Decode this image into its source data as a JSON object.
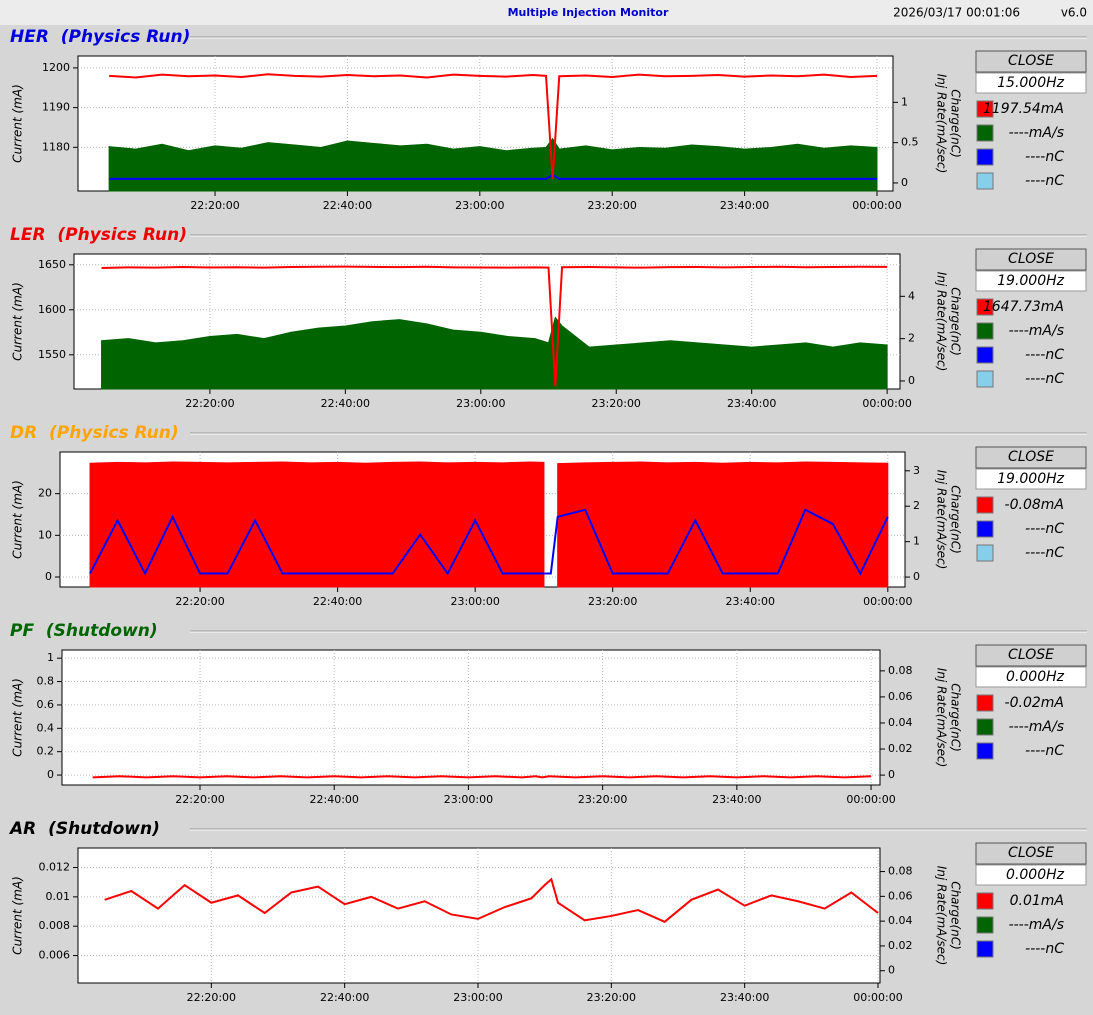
{
  "header": {
    "title": "Multiple Injection Monitor",
    "timestamp": "2026/03/17 00:01:06",
    "version": "v6.0"
  },
  "chart_data": [
    {
      "type": "line",
      "title": "HER  (Physics Run)",
      "title_color": "#0000dd",
      "ylabel": "Current (mA)",
      "y2label": [
        "Charge(nC)",
        "Inj Rate(mA/sec)"
      ],
      "grid": true,
      "x": [
        "22:04:00",
        "22:08:00",
        "22:12:00",
        "22:16:00",
        "22:20:00",
        "22:24:00",
        "22:28:00",
        "22:32:00",
        "22:36:00",
        "22:40:00",
        "22:44:00",
        "22:48:00",
        "22:52:00",
        "22:56:00",
        "23:00:00",
        "23:04:00",
        "23:08:00",
        "23:10:00",
        "23:11:00",
        "23:12:00",
        "23:16:00",
        "23:20:00",
        "23:24:00",
        "23:28:00",
        "23:32:00",
        "23:36:00",
        "23:40:00",
        "23:44:00",
        "23:48:00",
        "23:52:00",
        "23:56:00",
        "00:00:00"
      ],
      "xlim": [
        "21:59:18",
        "00:02:25"
      ],
      "xticks": [
        "22:20:00",
        "22:40:00",
        "23:00:00",
        "23:20:00",
        "23:40:00",
        "00:00:00"
      ],
      "ylim": [
        1169,
        1203
      ],
      "yticks": [
        1180,
        1190,
        1200
      ],
      "y2lim": [
        -0.1,
        1.575
      ],
      "y2ticks": [
        0,
        0.5,
        1
      ],
      "series": [
        {
          "color": "#006400",
          "style": "area",
          "axis": "y2",
          "values": [
            0.45,
            0.42,
            0.48,
            0.4,
            0.46,
            0.43,
            0.5,
            0.47,
            0.44,
            0.52,
            0.49,
            0.46,
            0.48,
            0.42,
            0.45,
            0.4,
            0.43,
            0.44,
            0.55,
            0.42,
            0.46,
            0.41,
            0.44,
            0.43,
            0.47,
            0.45,
            0.42,
            0.44,
            0.48,
            0.43,
            0.46,
            0.44
          ]
        },
        {
          "color": "#0000ff",
          "style": "line",
          "axis": "y2",
          "values": [
            0.05,
            0.05,
            0.05,
            0.05,
            0.05,
            0.05,
            0.05,
            0.05,
            0.05,
            0.05,
            0.05,
            0.05,
            0.05,
            0.05,
            0.05,
            0.05,
            0.05,
            0.05,
            0.1,
            0.05,
            0.05,
            0.05,
            0.05,
            0.05,
            0.05,
            0.05,
            0.05,
            0.05,
            0.05,
            0.05,
            0.05,
            0.05
          ]
        },
        {
          "color": "#ff0000",
          "style": "line",
          "values": [
            1198,
            1197.6,
            1198.3,
            1197.9,
            1198.1,
            1197.7,
            1198.4,
            1198,
            1197.8,
            1198.2,
            1197.9,
            1198.1,
            1197.6,
            1198.3,
            1198,
            1197.8,
            1198.2,
            1198,
            1172,
            1197.9,
            1198.1,
            1197.7,
            1198.3,
            1197.9,
            1198,
            1198.2,
            1197.8,
            1198.1,
            1197.9,
            1198.3,
            1197.7,
            1198
          ]
        }
      ],
      "button": "CLOSE",
      "rate": "15.000Hz",
      "readouts": [
        {
          "label": "1197.54mA",
          "color": "#ff0000"
        },
        {
          "label": "----mA/s",
          "color": "#006400"
        },
        {
          "label": "----nC",
          "color": "#0000ff"
        },
        {
          "label": "----nC",
          "color": "#87ceeb"
        }
      ]
    },
    {
      "type": "line",
      "title": "LER  (Physics Run)",
      "title_color": "#ee0000",
      "ylabel": "Current (mA)",
      "y2label": [
        "Charge(nC)",
        "Inj Rate(mA/sec)"
      ],
      "grid": true,
      "x": [
        "22:04:00",
        "22:08:00",
        "22:12:00",
        "22:16:00",
        "22:20:00",
        "22:24:00",
        "22:28:00",
        "22:32:00",
        "22:36:00",
        "22:40:00",
        "22:44:00",
        "22:48:00",
        "22:52:00",
        "22:56:00",
        "23:00:00",
        "23:04:00",
        "23:08:00",
        "23:10:00",
        "23:11:00",
        "23:12:00",
        "23:16:00",
        "23:20:00",
        "23:24:00",
        "23:28:00",
        "23:32:00",
        "23:36:00",
        "23:40:00",
        "23:44:00",
        "23:48:00",
        "23:52:00",
        "23:56:00",
        "00:00:00"
      ],
      "xlim": [
        "21:59:56",
        "00:01:54"
      ],
      "xticks": [
        "22:20:00",
        "22:40:00",
        "23:00:00",
        "23:20:00",
        "23:40:00",
        "00:00:00"
      ],
      "ylim": [
        1512,
        1662
      ],
      "yticks": [
        1550,
        1600,
        1650
      ],
      "y2lim": [
        -0.38,
        6
      ],
      "y2ticks": [
        0,
        2,
        4
      ],
      "series": [
        {
          "color": "#006400",
          "style": "area",
          "axis": "y2",
          "values": [
            1.9,
            2.0,
            1.8,
            1.9,
            2.1,
            2.2,
            2.0,
            2.3,
            2.5,
            2.6,
            2.8,
            2.9,
            2.7,
            2.4,
            2.3,
            2.1,
            2.0,
            1.8,
            3.0,
            2.6,
            1.6,
            1.7,
            1.8,
            1.9,
            1.8,
            1.7,
            1.6,
            1.7,
            1.8,
            1.6,
            1.8,
            1.7
          ]
        },
        {
          "color": "#ff0000",
          "style": "line",
          "values": [
            1646.5,
            1647.2,
            1646.8,
            1647.5,
            1647,
            1647.3,
            1646.9,
            1647.6,
            1647.8,
            1648,
            1647.7,
            1647.4,
            1647.9,
            1647.2,
            1647,
            1646.8,
            1647.1,
            1646.9,
            1515,
            1647.3,
            1647.5,
            1647.1,
            1646.8,
            1647.4,
            1647.6,
            1647.2,
            1647.5,
            1647.8,
            1647.3,
            1647.6,
            1647.9,
            1647.7
          ]
        }
      ],
      "button": "CLOSE",
      "rate": "19.000Hz",
      "readouts": [
        {
          "label": "1647.73mA",
          "color": "#ff0000"
        },
        {
          "label": "----mA/s",
          "color": "#006400"
        },
        {
          "label": "----nC",
          "color": "#0000ff"
        },
        {
          "label": "----nC",
          "color": "#87ceeb"
        }
      ]
    },
    {
      "type": "line",
      "title": "DR  (Physics Run)",
      "title_color": "#ffa500",
      "ylabel": "Current (mA)",
      "y2label": [
        "Charge(nC)",
        "Inj Rate(mA/sec)"
      ],
      "grid": true,
      "x": [
        "22:04:00",
        "22:08:00",
        "22:12:00",
        "22:16:00",
        "22:20:00",
        "22:24:00",
        "22:28:00",
        "22:32:00",
        "22:36:00",
        "22:40:00",
        "22:44:00",
        "22:48:00",
        "22:52:00",
        "22:56:00",
        "23:00:00",
        "23:04:00",
        "23:08:00",
        "23:10:00",
        "23:11:00",
        "23:12:00",
        "23:16:00",
        "23:20:00",
        "23:24:00",
        "23:28:00",
        "23:32:00",
        "23:36:00",
        "23:40:00",
        "23:44:00",
        "23:48:00",
        "23:52:00",
        "23:56:00",
        "00:00:00"
      ],
      "xlim": [
        "21:59:38",
        "00:02:30"
      ],
      "xticks": [
        "22:20:00",
        "22:40:00",
        "23:00:00",
        "23:20:00",
        "23:40:00",
        "00:00:00"
      ],
      "ylim": [
        -2.4,
        30
      ],
      "yticks": [
        0,
        10,
        20
      ],
      "y2lim": [
        -0.28,
        3.53
      ],
      "y2ticks": [
        0,
        1,
        2,
        3
      ],
      "series": [
        {
          "color": "#ff0000",
          "style": "area",
          "values": [
            27.3,
            27.5,
            27.4,
            27.6,
            27.5,
            27.4,
            27.5,
            27.6,
            27.4,
            27.5,
            27.3,
            27.5,
            27.6,
            27.4,
            27.5,
            27.4,
            27.6,
            27.5,
            null,
            27.2,
            27.4,
            27.5,
            27.6,
            27.4,
            27.5,
            27.3,
            27.5,
            27.4,
            27.6,
            27.5,
            27.4,
            27.3
          ]
        },
        {
          "color": "#0000ff",
          "style": "line",
          "axis": "y2",
          "values": [
            0.1,
            1.6,
            0.1,
            1.7,
            0.1,
            0.1,
            1.6,
            0.1,
            0.1,
            0.1,
            0.1,
            0.1,
            1.2,
            0.1,
            1.6,
            0.1,
            0.1,
            0.1,
            0.1,
            1.7,
            1.9,
            0.1,
            0.1,
            0.1,
            1.6,
            0.1,
            0.1,
            0.1,
            1.9,
            1.5,
            0.1,
            1.7
          ]
        }
      ],
      "button": "CLOSE",
      "rate": "19.000Hz",
      "readouts": [
        {
          "label": "-0.08mA",
          "color": "#ff0000"
        },
        {
          "label": "----nC",
          "color": "#0000ff"
        },
        {
          "label": "----nC",
          "color": "#87ceeb"
        }
      ]
    },
    {
      "type": "line",
      "title": "PF  (Shutdown)",
      "title_color": "#006400",
      "ylabel": "Current (mA)",
      "y2label": [
        "Charge(nC)",
        "Inj Rate(mA/sec)"
      ],
      "grid": true,
      "x": [
        "22:04:00",
        "22:08:00",
        "22:12:00",
        "22:16:00",
        "22:20:00",
        "22:24:00",
        "22:28:00",
        "22:32:00",
        "22:36:00",
        "22:40:00",
        "22:44:00",
        "22:48:00",
        "22:52:00",
        "22:56:00",
        "23:00:00",
        "23:04:00",
        "23:08:00",
        "23:10:00",
        "23:11:00",
        "23:12:00",
        "23:16:00",
        "23:20:00",
        "23:24:00",
        "23:28:00",
        "23:32:00",
        "23:36:00",
        "23:40:00",
        "23:44:00",
        "23:48:00",
        "23:52:00",
        "23:56:00",
        "00:00:00"
      ],
      "xlim": [
        "21:59:26",
        "00:01:20"
      ],
      "xticks": [
        "22:20:00",
        "22:40:00",
        "23:00:00",
        "23:20:00",
        "23:40:00",
        "00:00:00"
      ],
      "ylim": [
        -0.085,
        1.07
      ],
      "yticks": [
        0,
        0.2,
        0.4,
        0.6,
        0.8,
        1
      ],
      "y2lim": [
        -0.0076,
        0.096
      ],
      "y2ticks": [
        0,
        0.02,
        0.04,
        0.06,
        0.08
      ],
      "series": [
        {
          "color": "#ff0000",
          "style": "line",
          "values": [
            -0.02,
            -0.01,
            -0.02,
            -0.01,
            -0.02,
            -0.01,
            -0.02,
            -0.01,
            -0.02,
            -0.01,
            -0.02,
            -0.01,
            -0.02,
            -0.01,
            -0.02,
            -0.01,
            -0.02,
            -0.01,
            -0.02,
            -0.01,
            -0.02,
            -0.01,
            -0.02,
            -0.01,
            -0.02,
            -0.01,
            -0.02,
            -0.01,
            -0.02,
            -0.01,
            -0.02,
            -0.01
          ]
        }
      ],
      "button": "CLOSE",
      "rate": "0.000Hz",
      "readouts": [
        {
          "label": "-0.02mA",
          "color": "#ff0000"
        },
        {
          "label": "----mA/s",
          "color": "#006400"
        },
        {
          "label": "----nC",
          "color": "#0000ff"
        }
      ]
    },
    {
      "type": "line",
      "title": "AR  (Shutdown)",
      "title_color": "#000000",
      "ylabel": "Current (mA)",
      "y2label": [
        "Charge(nC)",
        "Inj Rate(mA/sec)"
      ],
      "grid": true,
      "x": [
        "22:04:00",
        "22:08:00",
        "22:12:00",
        "22:16:00",
        "22:20:00",
        "22:24:00",
        "22:28:00",
        "22:32:00",
        "22:36:00",
        "22:40:00",
        "22:44:00",
        "22:48:00",
        "22:52:00",
        "22:56:00",
        "23:00:00",
        "23:04:00",
        "23:08:00",
        "23:10:00",
        "23:11:00",
        "23:12:00",
        "23:16:00",
        "23:20:00",
        "23:24:00",
        "23:28:00",
        "23:32:00",
        "23:36:00",
        "23:40:00",
        "23:44:00",
        "23:48:00",
        "23:52:00",
        "23:56:00",
        "00:00:00"
      ],
      "xlim": [
        "22:00:00",
        "00:00:18"
      ],
      "xticks": [
        "22:20:00",
        "22:40:00",
        "23:00:00",
        "23:20:00",
        "23:40:00",
        "00:00:00"
      ],
      "ylim": [
        0.00413,
        0.01333
      ],
      "yticks": [
        0.006,
        0.008,
        0.01,
        0.012
      ],
      "y2lim": [
        -0.0099,
        0.099
      ],
      "y2ticks": [
        0,
        0.02,
        0.04,
        0.06,
        0.08
      ],
      "series": [
        {
          "color": "#ff0000",
          "style": "line",
          "values": [
            0.0098,
            0.0104,
            0.0092,
            0.0108,
            0.0096,
            0.0101,
            0.0089,
            0.0103,
            0.0107,
            0.0095,
            0.01,
            0.0092,
            0.0097,
            0.0088,
            0.0085,
            0.0093,
            0.0099,
            0.0108,
            0.0112,
            0.0096,
            0.0084,
            0.0087,
            0.0091,
            0.0083,
            0.0098,
            0.0105,
            0.0094,
            0.0101,
            0.0097,
            0.0092,
            0.0103,
            0.0089
          ]
        }
      ],
      "button": "CLOSE",
      "rate": "0.000Hz",
      "readouts": [
        {
          "label": "0.01mA",
          "color": "#ff0000"
        },
        {
          "label": "----mA/s",
          "color": "#006400"
        },
        {
          "label": "----nC",
          "color": "#0000ff"
        }
      ]
    }
  ]
}
